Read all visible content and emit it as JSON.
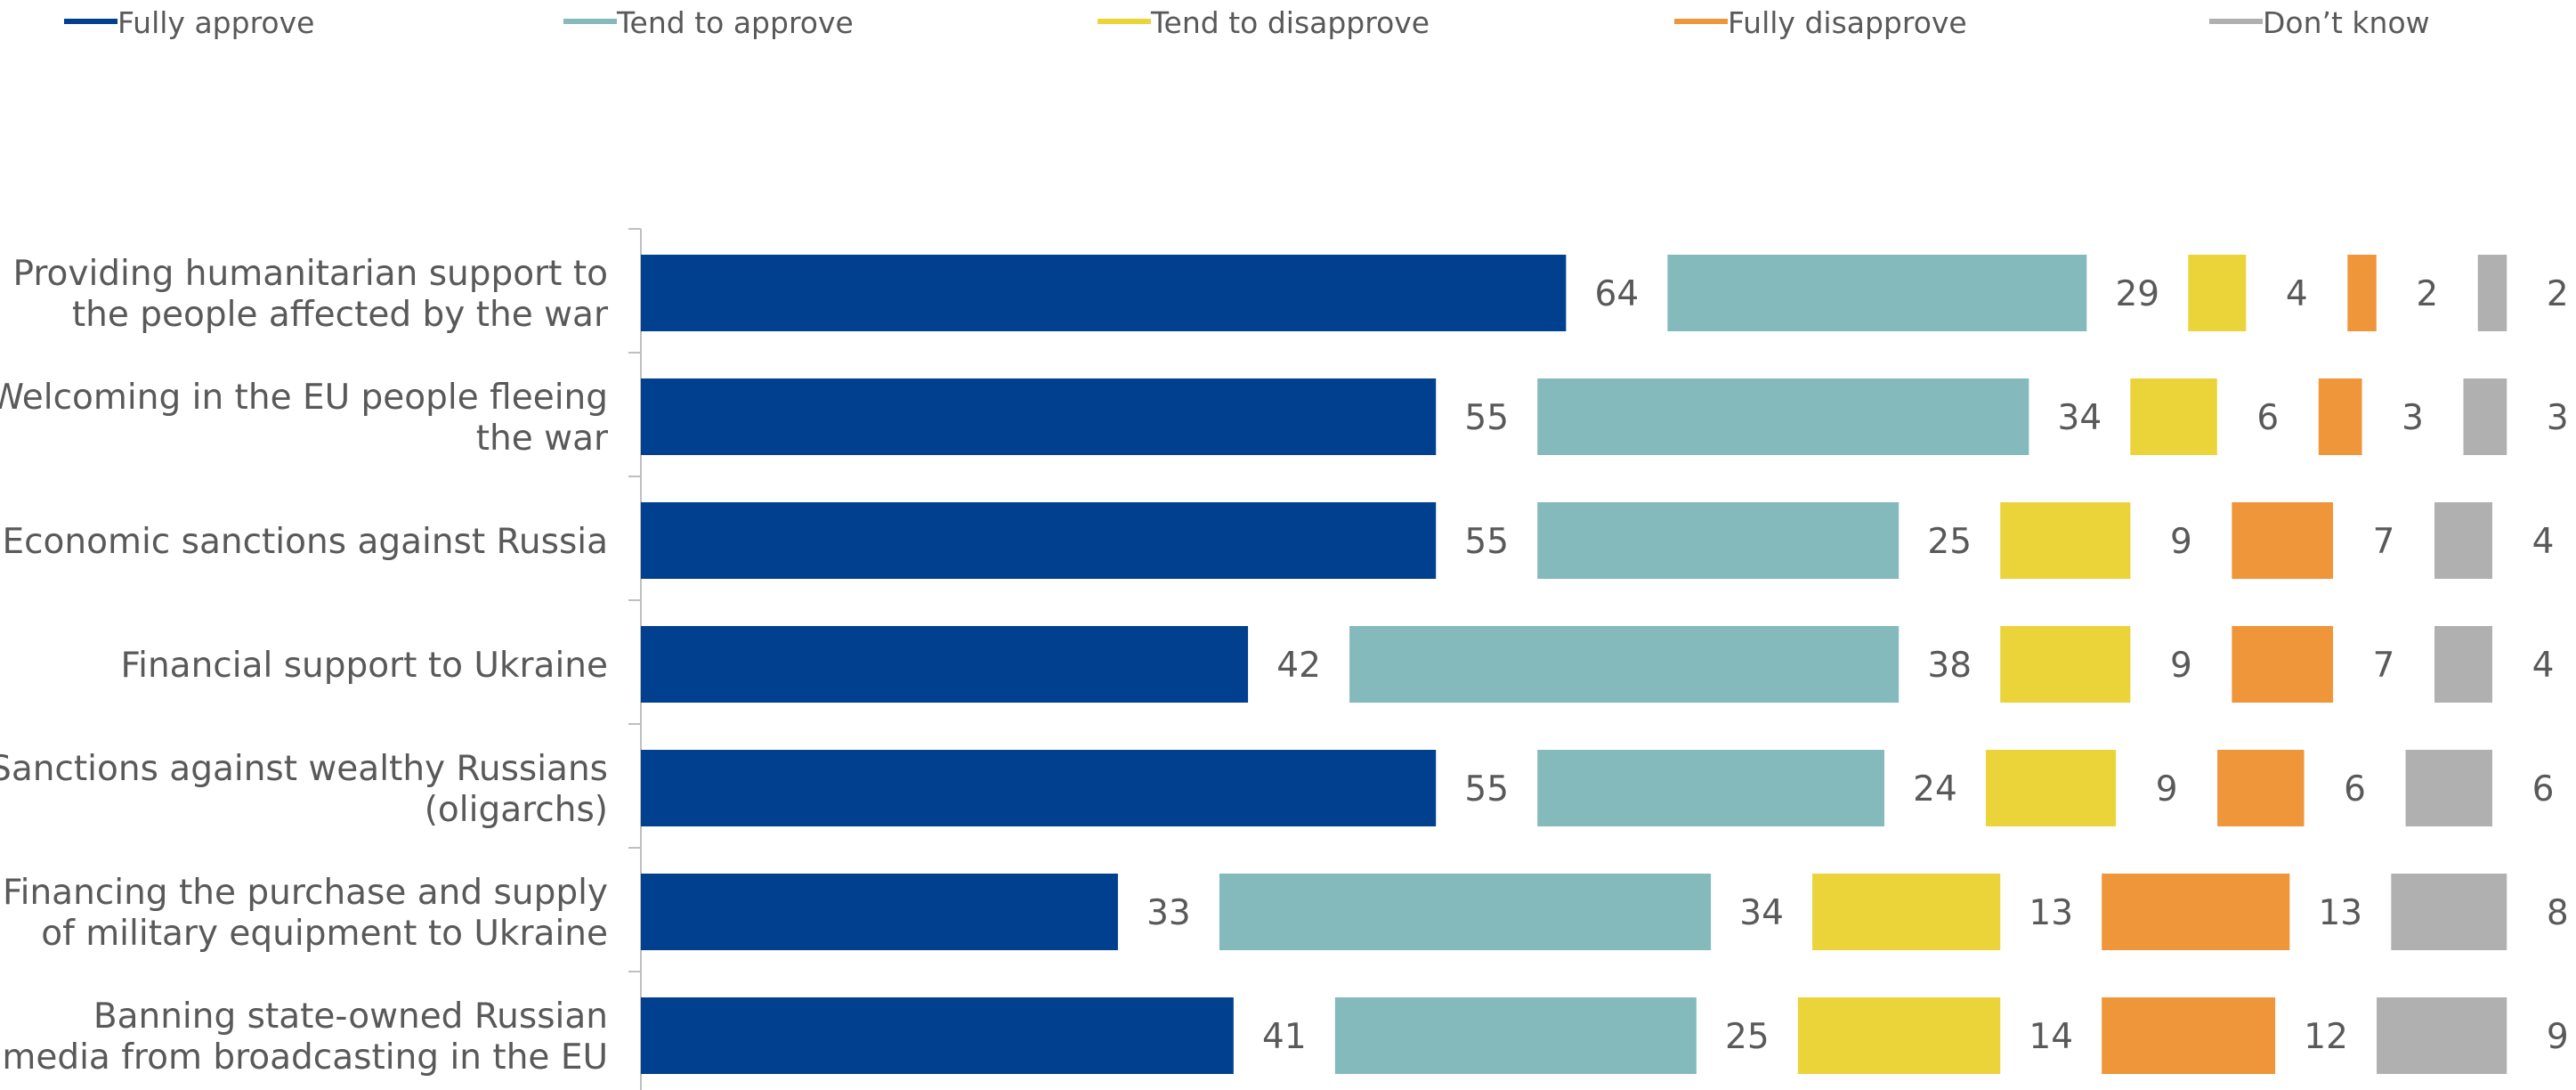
{
  "chart_data": {
    "type": "bar",
    "orientation": "horizontal",
    "stacked": true,
    "categories": [
      [
        "Providing humanitarian support to",
        "the people affected by the war"
      ],
      [
        "Welcoming in the EU people fleeing",
        "the war"
      ],
      [
        "Economic sanctions against Russia"
      ],
      [
        "Financial support to Ukraine"
      ],
      [
        "Sanctions against wealthy Russians",
        "(oligarchs)"
      ],
      [
        "Financing the purchase and supply",
        "of military equipment to Ukraine"
      ],
      [
        "Banning state-owned Russian",
        "media from broadcasting in the EU"
      ]
    ],
    "series": [
      {
        "name": "Fully approve",
        "color": "#00408F",
        "values": [
          64,
          55,
          55,
          42,
          55,
          33,
          41
        ]
      },
      {
        "name": "Tend to approve",
        "color": "#84BABB",
        "values": [
          29,
          34,
          25,
          38,
          24,
          34,
          25
        ]
      },
      {
        "name": "Tend to disapprove",
        "color": "#EBD33A",
        "values": [
          4,
          6,
          9,
          9,
          9,
          13,
          14
        ]
      },
      {
        "name": "Fully disapprove",
        "color": "#F0963A",
        "values": [
          2,
          3,
          7,
          7,
          6,
          13,
          12
        ]
      },
      {
        "name": "Don’t know",
        "color": "#B0B0B0",
        "values": [
          2,
          3,
          4,
          4,
          6,
          8,
          9
        ]
      }
    ],
    "legend_position": "top",
    "grid": false,
    "data_labels": true
  }
}
